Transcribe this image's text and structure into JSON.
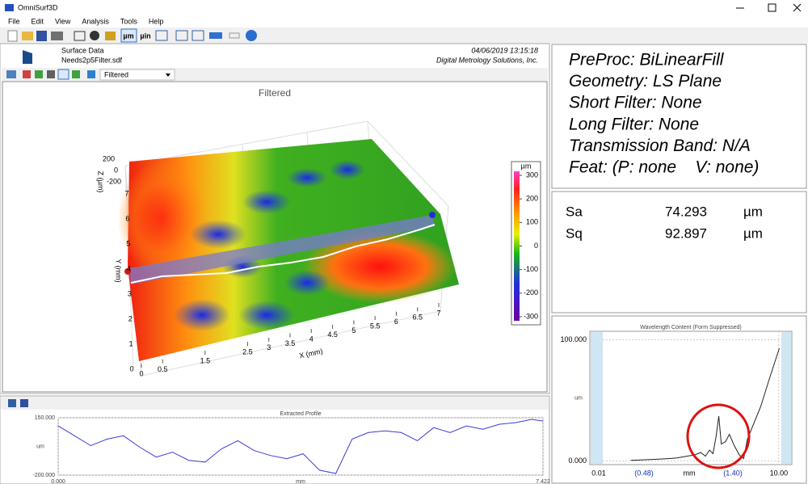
{
  "window": {
    "title": "OmniSurf3D"
  },
  "menu": [
    "File",
    "Edit",
    "View",
    "Analysis",
    "Tools",
    "Help"
  ],
  "toolbar": {
    "unit_buttons": [
      "µm",
      "µin"
    ]
  },
  "header": {
    "label": "Surface Data",
    "file": "Needs2p5Filter.sdf",
    "timestamp": "04/06/2019 13:15:18",
    "company": "Digital Metrology Solutions, Inc."
  },
  "view_selector": "Filtered",
  "surface_plot": {
    "title": "Filtered",
    "x_label": "X (mm)",
    "y_label": "Y (mm)",
    "z_label": "Z (µm)",
    "xlim": [
      0,
      7
    ],
    "ylim": [
      0,
      7
    ],
    "zlim": [
      -200,
      200
    ],
    "x_ticks": [
      0,
      0.5,
      1.5,
      2.5,
      3,
      3.5,
      4,
      4.5,
      5,
      5.5,
      6,
      6.5,
      7
    ],
    "y_ticks": [
      0,
      1,
      2,
      3,
      4,
      5,
      6,
      7
    ],
    "z_ticks": [
      200,
      0,
      -200
    ],
    "colorbar": {
      "unit": "µm",
      "lim": [
        -300,
        300
      ],
      "ticks": [
        300,
        200,
        100,
        0,
        -100,
        -200,
        -300
      ]
    }
  },
  "parameters": [
    "PreProc: BiLinearFill",
    "Geometry: LS Plane",
    "Short Filter: None",
    "Long Filter: None",
    "Transmission Band: N/A",
    "Feat: (P: none    V: none)"
  ],
  "statistics": [
    {
      "name": "Sa",
      "value": 74.293,
      "unit": "µm"
    },
    {
      "name": "Sq",
      "value": 92.897,
      "unit": "µm"
    }
  ],
  "wavelength_chart": {
    "type": "line",
    "title": "Wavelength Content (Form Suppressed)",
    "y_label": "um",
    "x_label": "mm",
    "log_x": true,
    "xlim": [
      0.0071,
      16.5
    ],
    "ylim": [
      -3,
      107
    ],
    "xticks": [
      0.01,
      {
        "value": 10,
        "label": "10.00"
      }
    ],
    "yticks": [
      {
        "value": 0,
        "label": "0.000"
      },
      {
        "value": 100,
        "label": "100.000"
      }
    ],
    "cutoff_labels": [
      "(0.48)",
      "(1.40)"
    ],
    "color": "#222222",
    "x": [
      0.034,
      0.06,
      0.1,
      0.15,
      0.2,
      0.3,
      0.4,
      0.5,
      0.6,
      0.7,
      0.8,
      0.9,
      1.0,
      1.1,
      1.3,
      1.5,
      1.8,
      2.2,
      2.6,
      3.0,
      5.0,
      7.0,
      10.2
    ],
    "values": [
      0.5,
      1,
      1.5,
      2,
      2.5,
      4,
      5,
      7,
      4,
      9,
      6,
      20,
      37,
      14,
      16,
      22,
      13,
      5,
      2,
      18,
      45,
      68,
      93
    ]
  },
  "profile_chart": {
    "type": "line",
    "title": "Extracted Profile",
    "y_label": "um",
    "x_label": "mm",
    "color": "#3b3bd6",
    "xlim": [
      0,
      7.422
    ],
    "ylim": [
      -200,
      150
    ],
    "xticks": [
      {
        "value": 0,
        "label": "0.000"
      },
      {
        "value": 7.422,
        "label": "7.422"
      }
    ],
    "yticks": [
      {
        "value": 150,
        "label": "150.000"
      },
      {
        "value": -200,
        "label": "-200.000"
      }
    ],
    "x": [
      0,
      0.25,
      0.5,
      0.75,
      1,
      1.25,
      1.5,
      1.75,
      2,
      2.25,
      2.5,
      2.75,
      3,
      3.25,
      3.5,
      3.75,
      4,
      4.25,
      4.5,
      4.75,
      5,
      5.25,
      5.5,
      5.75,
      6,
      6.25,
      6.5,
      6.75,
      7,
      7.25,
      7.422
    ],
    "values": [
      100,
      40,
      -20,
      20,
      40,
      -30,
      -90,
      -60,
      -110,
      -120,
      -40,
      10,
      -50,
      -80,
      -100,
      -70,
      -170,
      -190,
      20,
      60,
      70,
      60,
      10,
      90,
      60,
      100,
      80,
      110,
      120,
      140,
      130
    ]
  }
}
